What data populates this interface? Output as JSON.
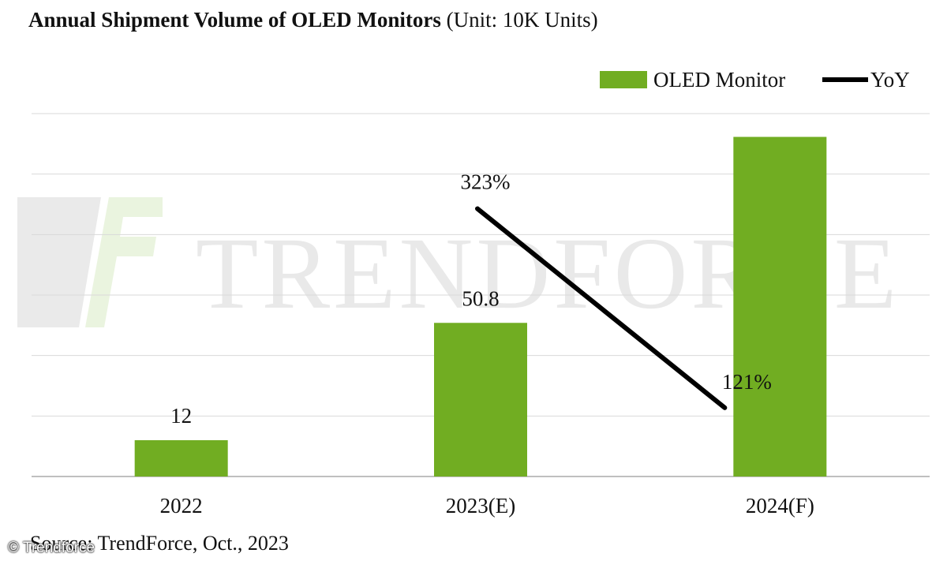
{
  "title": "Annual Shipment Volume of OLED Monitors",
  "unit": "(Unit: 10K Units)",
  "source": "Source: TrendForce, Oct., 2023",
  "credit": "© Trendforce",
  "watermark": "TRENDFORCE",
  "colors": {
    "bar": "#71ad22",
    "line": "#000000",
    "grid": "#d9d9d9",
    "axis": "#bfbfbf",
    "watermark": "#e6e6e6"
  },
  "chart_data": {
    "type": "bar",
    "title": "Annual Shipment Volume of OLED Monitors",
    "categories": [
      "2022",
      "2023(E)",
      "2024(F)"
    ],
    "series": [
      {
        "name": "OLED Monitor",
        "type": "bar",
        "axis": "left",
        "values": [
          12,
          50.8,
          112.3
        ],
        "labels": [
          "12",
          "50.8",
          ""
        ]
      },
      {
        "name": "YoY",
        "type": "line",
        "axis": "right",
        "values": [
          null,
          323,
          121
        ],
        "labels": [
          "",
          "323%",
          "121%"
        ]
      }
    ],
    "ylim": [
      0,
      120
    ],
    "y2lim": [
      0,
      400
    ],
    "legend": "top-right",
    "grid": true,
    "xlabel": "",
    "ylabel": ""
  }
}
